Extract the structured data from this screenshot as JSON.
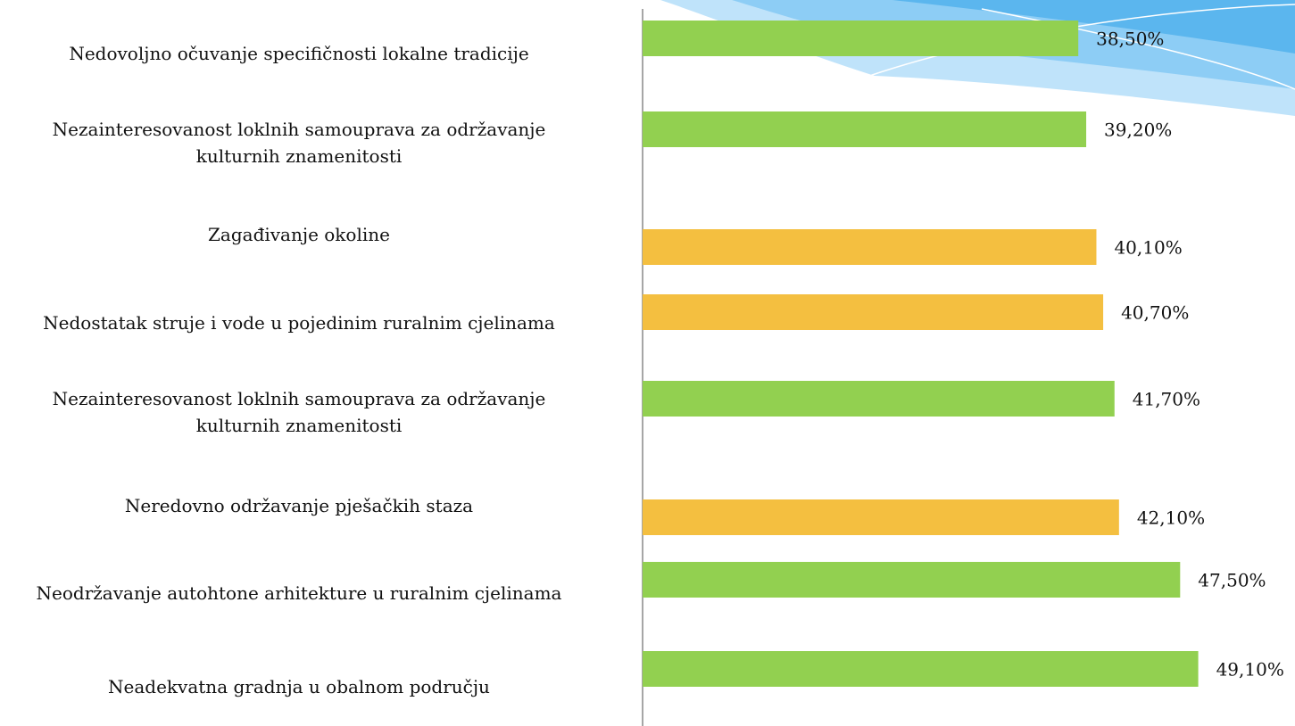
{
  "chart_data": {
    "type": "hbar",
    "categories": [
      "Nedovoljno očuvanje specifičnosti lokalne tradicije",
      "Nezainteresovanost loklnih samouprava za održavanje\nkulturnih znamenitosti",
      "Zagađivanje okoline",
      "Nedostatak struje i vode u pojedinim ruralnim cjelinama",
      "Nezainteresovanost loklnih samouprava za održavanje\nkulturnih znamenitosti",
      "Neredovno održavanje pješačkih staza",
      "Neodržavanje autohtone arhitekture u ruralnim cjelinama",
      "Neadekvatna gradnja u obalnom području"
    ],
    "values": [
      38.5,
      39.2,
      40.1,
      40.7,
      41.7,
      42.1,
      47.5,
      49.1
    ],
    "value_labels": [
      "38,50%",
      "39,20%",
      "40,10%",
      "40,70%",
      "41,70%",
      "42,10%",
      "47,50%",
      "49,10%"
    ],
    "colors": [
      "#92d050",
      "#92d050",
      "#f4bf40",
      "#f4bf40",
      "#92d050",
      "#f4bf40",
      "#92d050",
      "#92d050"
    ],
    "xlim": [
      0,
      50
    ]
  }
}
